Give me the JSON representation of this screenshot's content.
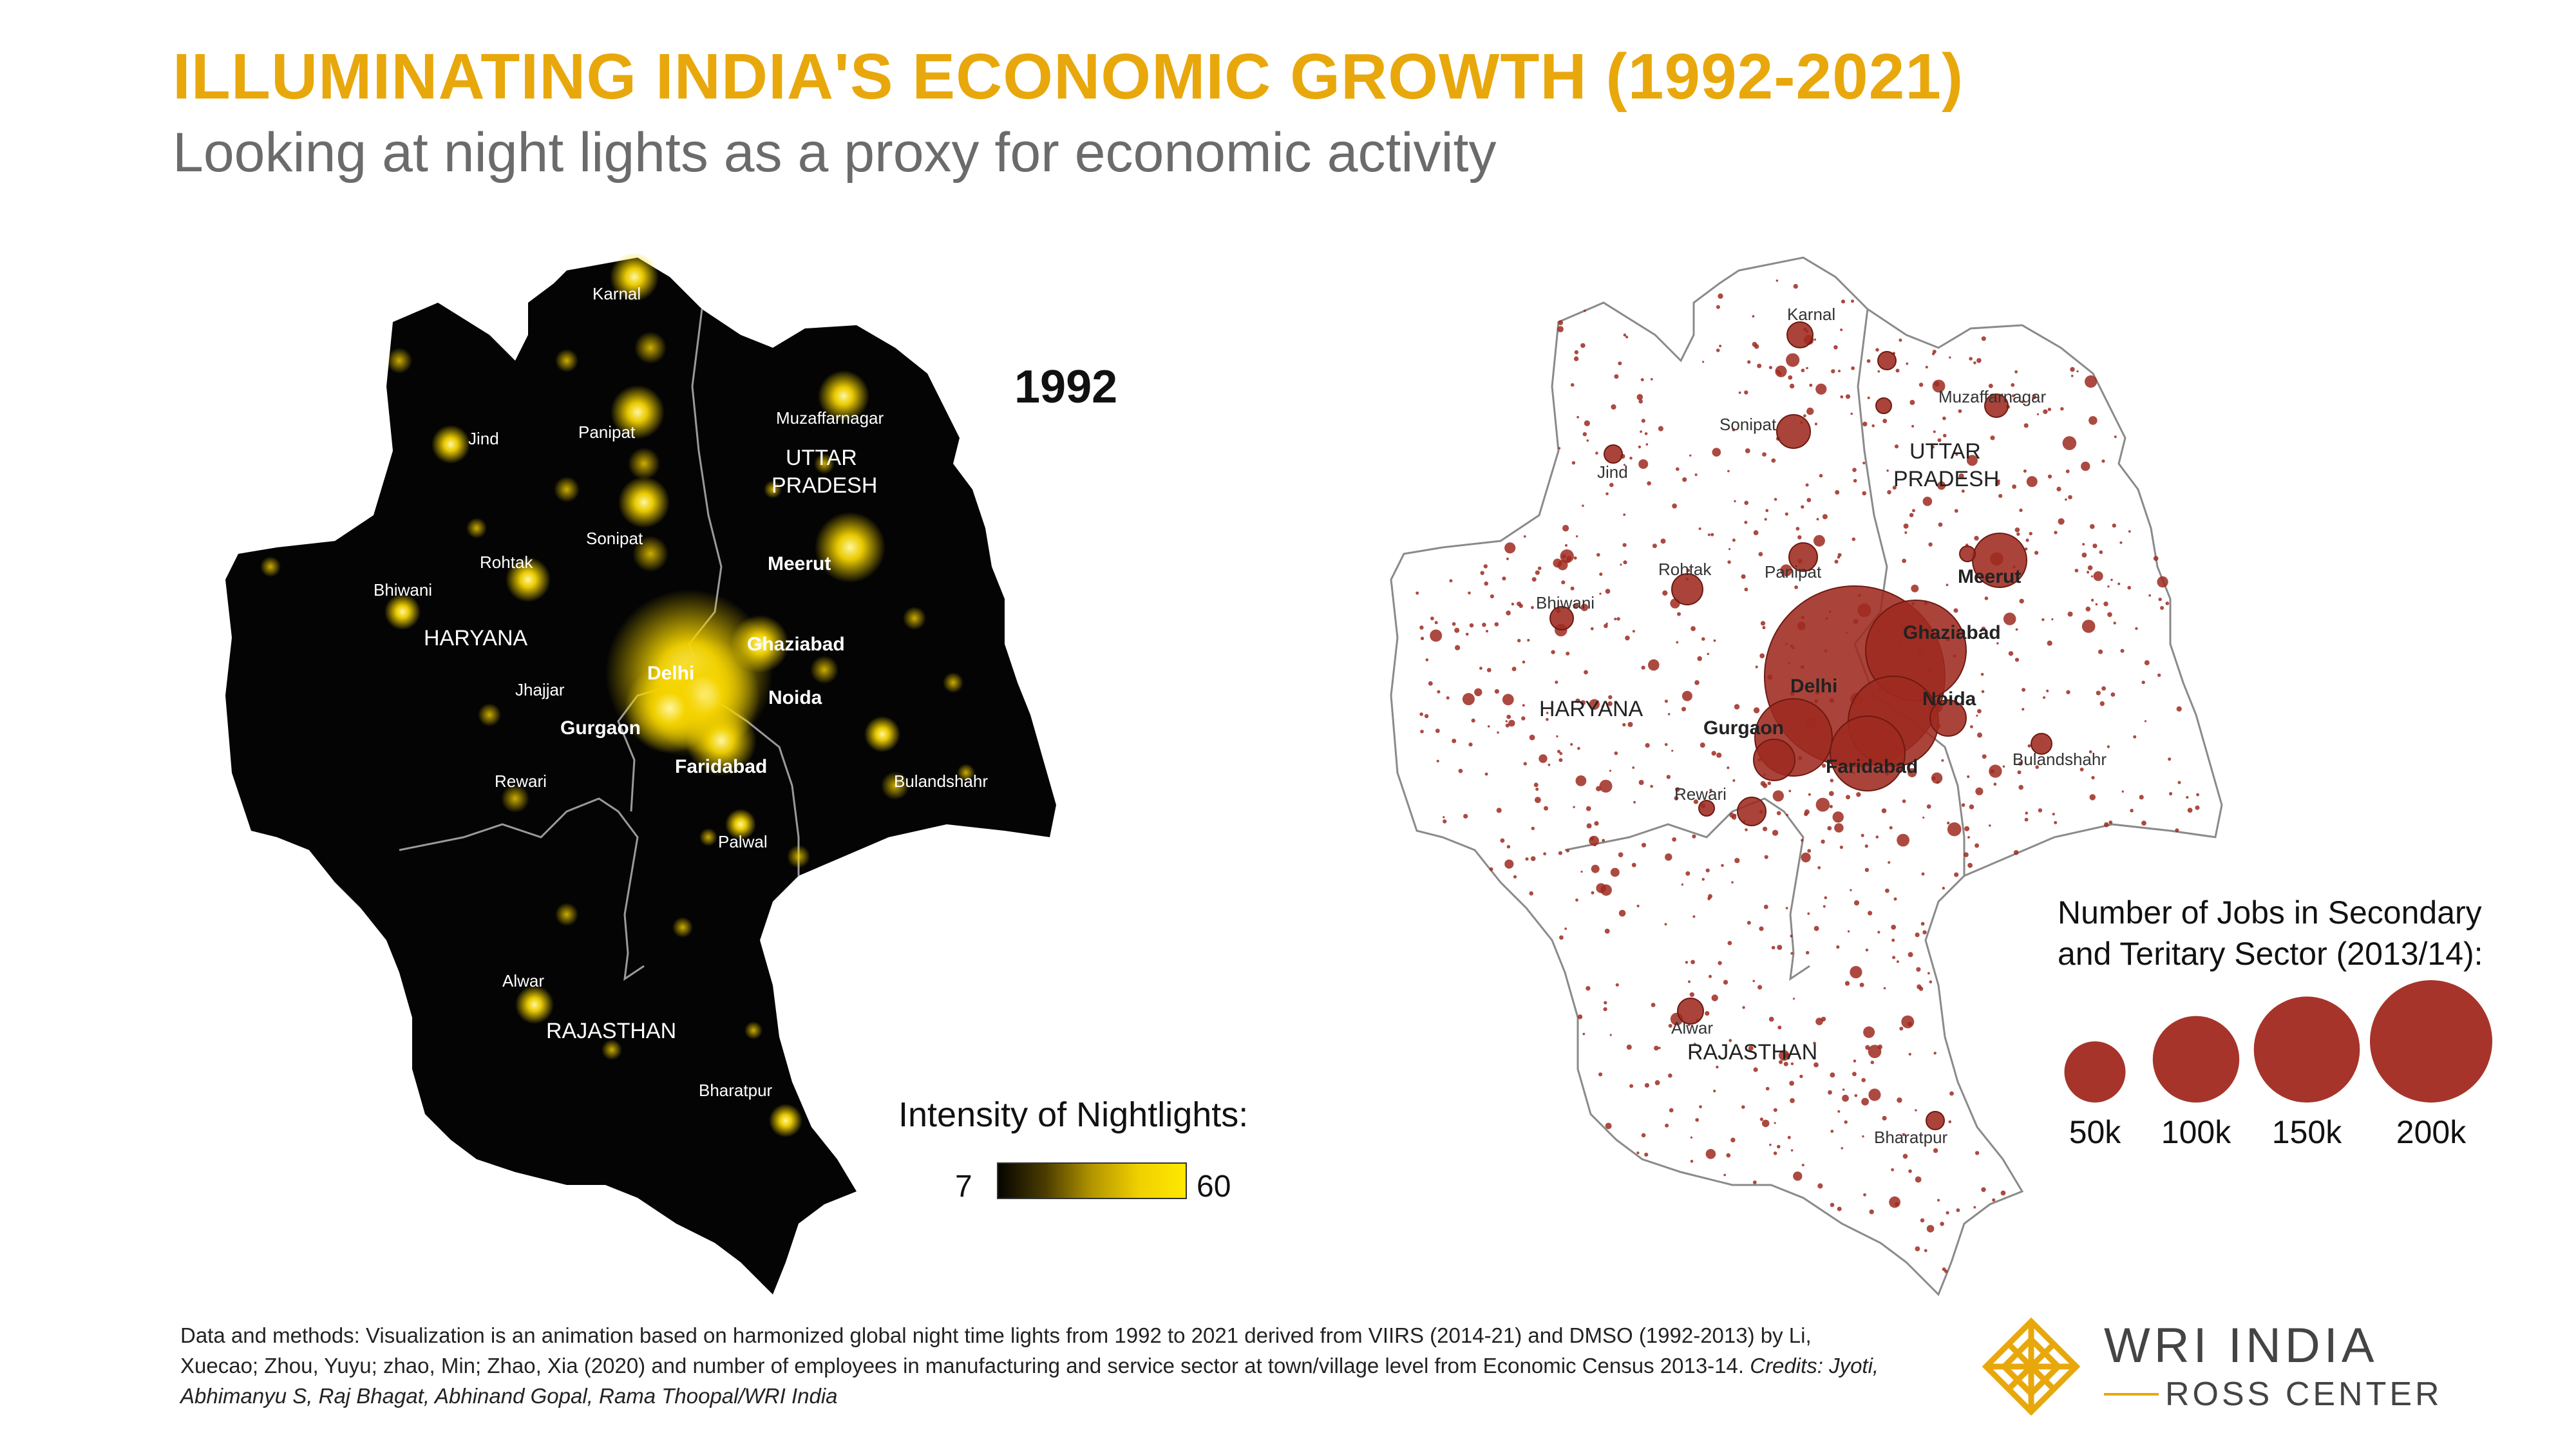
{
  "header": {
    "title": "ILLUMINATING INDIA'S ECONOMIC GROWTH (1992-2021)",
    "subtitle": "Looking at night lights as a proxy for economic activity"
  },
  "year_label": "1992",
  "maps": {
    "nightlights": {
      "cities": [
        "Karnal",
        "Muzaffarnagar",
        "Jind",
        "Panipat",
        "Sonipat",
        "Rohtak",
        "Bhiwani",
        "Meerut",
        "Ghaziabad",
        "Jhajjar",
        "Noida",
        "Gurgaon",
        "Faridabad",
        "Rewari",
        "Bulandshahr",
        "Palwal",
        "Alwar",
        "Bharatpur"
      ],
      "major_city": "Delhi",
      "states": [
        "HARYANA",
        "UTTAR PRADESH",
        "RAJASTHAN"
      ],
      "states_lines": {
        "up_line1": "UTTAR",
        "up_line2": "PRADESH"
      },
      "colors": {
        "background": "#040404",
        "light": "#f5d400"
      }
    },
    "jobs": {
      "cities": [
        "Karnal",
        "Muzaffarnagar",
        "Sonipat",
        "Jind",
        "Rohtak",
        "Panipat",
        "Meerut",
        "Bhiwani",
        "Ghaziabad",
        "Noida",
        "Gurgaon",
        "Bulandshahr",
        "Faridabad",
        "Rewari",
        "Alwar",
        "Bharatpur"
      ],
      "major_city": "Delhi",
      "states_lines": {
        "haryana": "HARYANA",
        "up_line1": "UTTAR",
        "up_line2": "PRADESH",
        "rajasthan": "RAJASTHAN"
      },
      "colors": {
        "background": "#ffffff",
        "bubble": "#9e2a20"
      }
    }
  },
  "legends": {
    "nightlights": {
      "title": "Intensity of Nightlights:",
      "min": "7",
      "max": "60"
    },
    "jobs": {
      "title_line1": "Number of Jobs in Secondary",
      "title_line2": "and Teritary Sector (2013/14):",
      "sizes": [
        {
          "label": "50k",
          "value": 50000
        },
        {
          "label": "100k",
          "value": 100000
        },
        {
          "label": "150k",
          "value": 150000
        },
        {
          "label": "200k",
          "value": 200000
        }
      ]
    }
  },
  "footer": {
    "text": "Data and methods: Visualization is an animation based on harmonized global night time lights from 1992 to 2021 derived from VIIRS (2014-21) and DMSO (1992-2013) by Li, Xuecao; Zhou, Yuyu; zhao, Min; Zhao, Xia (2020) and number of employees in manufacturing and service sector at town/village level from Economic Census 2013-14.",
    "credits": "Credits: Jyoti, Abhimanyu S, Raj Bhagat, Abhinand Gopal, Rama Thoopal/WRI India"
  },
  "logo": {
    "line1": "WRI INDIA",
    "line2": "ROSS CENTER",
    "color": "#e8a80c"
  }
}
